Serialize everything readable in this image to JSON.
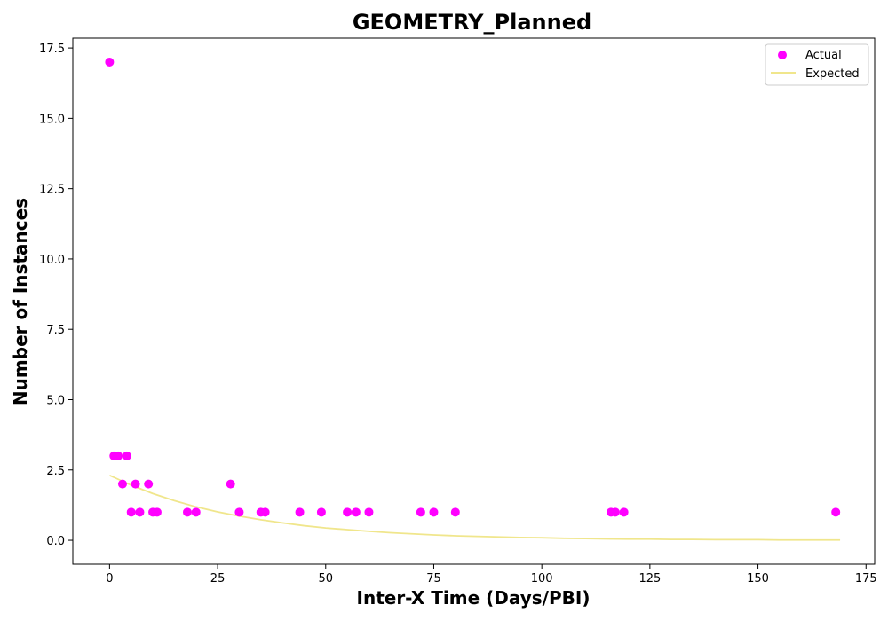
{
  "chart_data": {
    "type": "scatter",
    "title": "GEOMETRY_Planned",
    "xlabel": "Inter-X Time (Days/PBI)",
    "ylabel": "Number of Instances",
    "xlim": [
      -8.5,
      177
    ],
    "ylim": [
      -0.85,
      17.85
    ],
    "xticks": [
      0,
      25,
      50,
      75,
      100,
      125,
      150,
      175
    ],
    "xtick_labels": [
      "0",
      "25",
      "50",
      "75",
      "100",
      "125",
      "150",
      "175"
    ],
    "yticks": [
      0,
      2.5,
      5,
      7.5,
      10,
      12.5,
      15,
      17.5
    ],
    "ytick_labels": [
      "0.0",
      "2.5",
      "5.0",
      "7.5",
      "10.0",
      "12.5",
      "15.0",
      "17.5"
    ],
    "grid": false,
    "legend_position": "top-right",
    "series": [
      {
        "name": "Actual",
        "kind": "scatter",
        "color": "#ff00ff",
        "points": [
          {
            "x": 0,
            "y": 17
          },
          {
            "x": 1,
            "y": 3
          },
          {
            "x": 2,
            "y": 3
          },
          {
            "x": 3,
            "y": 2
          },
          {
            "x": 4,
            "y": 3
          },
          {
            "x": 5,
            "y": 1
          },
          {
            "x": 6,
            "y": 2
          },
          {
            "x": 7,
            "y": 1
          },
          {
            "x": 9,
            "y": 2
          },
          {
            "x": 10,
            "y": 1
          },
          {
            "x": 11,
            "y": 1
          },
          {
            "x": 18,
            "y": 1
          },
          {
            "x": 20,
            "y": 1
          },
          {
            "x": 28,
            "y": 2
          },
          {
            "x": 30,
            "y": 1
          },
          {
            "x": 35,
            "y": 1
          },
          {
            "x": 36,
            "y": 1
          },
          {
            "x": 44,
            "y": 1
          },
          {
            "x": 49,
            "y": 1
          },
          {
            "x": 55,
            "y": 1
          },
          {
            "x": 57,
            "y": 1
          },
          {
            "x": 60,
            "y": 1
          },
          {
            "x": 72,
            "y": 1
          },
          {
            "x": 75,
            "y": 1
          },
          {
            "x": 80,
            "y": 1
          },
          {
            "x": 116,
            "y": 1
          },
          {
            "x": 117,
            "y": 1
          },
          {
            "x": 119,
            "y": 1
          },
          {
            "x": 168,
            "y": 1
          }
        ]
      },
      {
        "name": "Expected",
        "kind": "line",
        "color": "#f0e68c",
        "points": [
          {
            "x": 0,
            "y": 2.31
          },
          {
            "x": 5,
            "y": 1.96
          },
          {
            "x": 10,
            "y": 1.66
          },
          {
            "x": 15,
            "y": 1.41
          },
          {
            "x": 20,
            "y": 1.19
          },
          {
            "x": 25,
            "y": 1.01
          },
          {
            "x": 30,
            "y": 0.86
          },
          {
            "x": 35,
            "y": 0.73
          },
          {
            "x": 40,
            "y": 0.62
          },
          {
            "x": 45,
            "y": 0.52
          },
          {
            "x": 50,
            "y": 0.44
          },
          {
            "x": 55,
            "y": 0.38
          },
          {
            "x": 60,
            "y": 0.32
          },
          {
            "x": 65,
            "y": 0.27
          },
          {
            "x": 70,
            "y": 0.23
          },
          {
            "x": 75,
            "y": 0.19
          },
          {
            "x": 80,
            "y": 0.16
          },
          {
            "x": 85,
            "y": 0.14
          },
          {
            "x": 90,
            "y": 0.12
          },
          {
            "x": 95,
            "y": 0.1
          },
          {
            "x": 100,
            "y": 0.09
          },
          {
            "x": 105,
            "y": 0.07
          },
          {
            "x": 110,
            "y": 0.06
          },
          {
            "x": 115,
            "y": 0.05
          },
          {
            "x": 120,
            "y": 0.04
          },
          {
            "x": 125,
            "y": 0.04
          },
          {
            "x": 130,
            "y": 0.03
          },
          {
            "x": 135,
            "y": 0.03
          },
          {
            "x": 140,
            "y": 0.02
          },
          {
            "x": 145,
            "y": 0.02
          },
          {
            "x": 150,
            "y": 0.02
          },
          {
            "x": 155,
            "y": 0.01
          },
          {
            "x": 160,
            "y": 0.01
          },
          {
            "x": 165,
            "y": 0.01
          },
          {
            "x": 169,
            "y": 0.01
          }
        ]
      }
    ]
  }
}
